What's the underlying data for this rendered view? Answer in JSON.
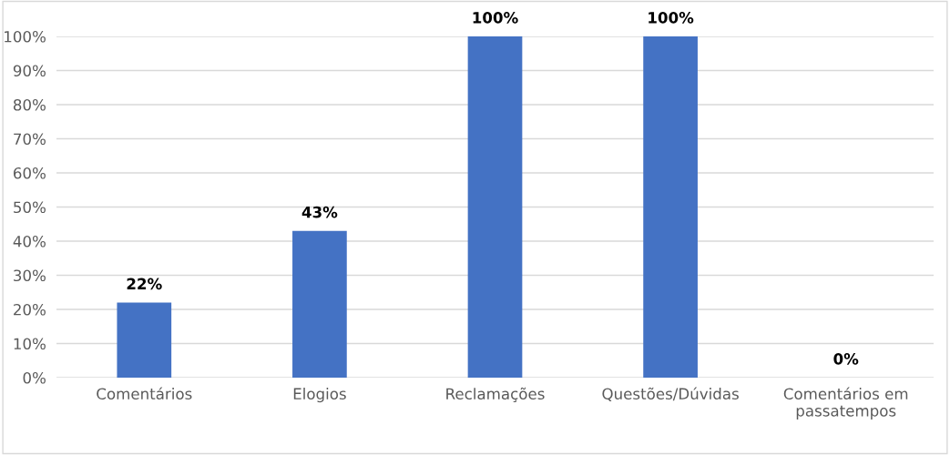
{
  "chart_data": {
    "type": "bar",
    "categories": [
      "Comentários",
      "Elogios",
      "Reclamações",
      "Questões/Dúvidas",
      "Comentários em\npassatempos"
    ],
    "values": [
      22,
      43,
      100,
      100,
      0
    ],
    "value_labels": [
      "22%",
      "43%",
      "100%",
      "100%",
      "0%"
    ],
    "color": "#4472c4",
    "ylim": [
      0,
      100
    ],
    "yticks": [
      {
        "value": 0,
        "label": "0%"
      },
      {
        "value": 10,
        "label": "10%"
      },
      {
        "value": 20,
        "label": "20%"
      },
      {
        "value": 30,
        "label": "30%"
      },
      {
        "value": 40,
        "label": "40%"
      },
      {
        "value": 50,
        "label": "50%"
      },
      {
        "value": 60,
        "label": "60%"
      },
      {
        "value": 70,
        "label": "70%"
      },
      {
        "value": 80,
        "label": "80%"
      },
      {
        "value": 90,
        "label": "90%"
      },
      {
        "value": 100,
        "label": "100%"
      }
    ],
    "grid": "y"
  }
}
